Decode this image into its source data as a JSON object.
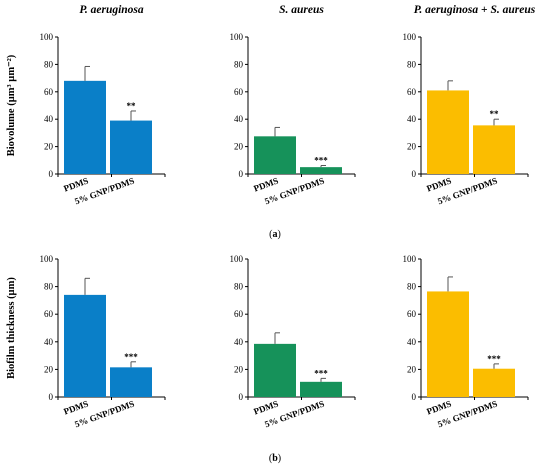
{
  "chart_data": [
    {
      "type": "bar",
      "row": "a",
      "column": 0,
      "title": {
        "parts": [
          {
            "text": "P. aeruginosa",
            "italic": true
          }
        ]
      },
      "ylabel": "Biovolume (µm³ µm⁻²)",
      "categories": [
        "PDMS",
        "5% GNP/PDMS"
      ],
      "values": [
        68,
        39
      ],
      "errors": [
        10.5,
        7
      ],
      "significance": [
        "",
        "**"
      ],
      "color": "#0a7fc8",
      "ylim": [
        0,
        100
      ],
      "yticks": [
        0,
        20,
        40,
        60,
        80,
        100
      ]
    },
    {
      "type": "bar",
      "row": "a",
      "column": 1,
      "title": {
        "parts": [
          {
            "text": "S. aureus",
            "italic": true
          }
        ]
      },
      "ylabel": "",
      "categories": [
        "PDMS",
        "5% GNP/PDMS"
      ],
      "values": [
        27.5,
        5
      ],
      "errors": [
        6.5,
        1.2
      ],
      "significance": [
        "",
        "***"
      ],
      "color": "#16925a",
      "ylim": [
        0,
        100
      ],
      "yticks": [
        0,
        20,
        40,
        60,
        80,
        100
      ]
    },
    {
      "type": "bar",
      "row": "a",
      "column": 2,
      "title": {
        "parts": [
          {
            "text": "P. aeruginosa",
            "italic": true
          },
          {
            "text": " + ",
            "italic": false
          },
          {
            "text": "S. aureus",
            "italic": true
          }
        ]
      },
      "ylabel": "",
      "categories": [
        "PDMS",
        "5% GNP/PDMS"
      ],
      "values": [
        61,
        35.5
      ],
      "errors": [
        7,
        4.5
      ],
      "significance": [
        "",
        "**"
      ],
      "color": "#fbbd00",
      "ylim": [
        0,
        100
      ],
      "yticks": [
        0,
        20,
        40,
        60,
        80,
        100
      ]
    },
    {
      "type": "bar",
      "row": "b",
      "column": 0,
      "title": {
        "parts": []
      },
      "ylabel": "Biofilm thickness (µm)",
      "categories": [
        "PDMS",
        "5% GNP/PDMS"
      ],
      "values": [
        74,
        21.5
      ],
      "errors": [
        12,
        4
      ],
      "significance": [
        "",
        "***"
      ],
      "color": "#0a7fc8",
      "ylim": [
        0,
        100
      ],
      "yticks": [
        0,
        20,
        40,
        60,
        80,
        100
      ]
    },
    {
      "type": "bar",
      "row": "b",
      "column": 1,
      "title": {
        "parts": []
      },
      "ylabel": "",
      "categories": [
        "PDMS",
        "5% GNP/PDMS"
      ],
      "values": [
        38.5,
        11
      ],
      "errors": [
        8,
        2.5
      ],
      "significance": [
        "",
        "***"
      ],
      "color": "#16925a",
      "ylim": [
        0,
        100
      ],
      "yticks": [
        0,
        20,
        40,
        60,
        80,
        100
      ]
    },
    {
      "type": "bar",
      "row": "b",
      "column": 2,
      "title": {
        "parts": []
      },
      "ylabel": "",
      "categories": [
        "PDMS",
        "5% GNP/PDMS"
      ],
      "values": [
        76.5,
        20.5
      ],
      "errors": [
        10.5,
        3.5
      ],
      "significance": [
        "",
        "***"
      ],
      "color": "#fbbd00",
      "ylim": [
        0,
        100
      ],
      "yticks": [
        0,
        20,
        40,
        60,
        80,
        100
      ]
    }
  ],
  "panel_labels": [
    {
      "row": "a",
      "text": "(a)",
      "letter": "a"
    },
    {
      "row": "b",
      "text": "(b)",
      "letter": "b"
    }
  ]
}
